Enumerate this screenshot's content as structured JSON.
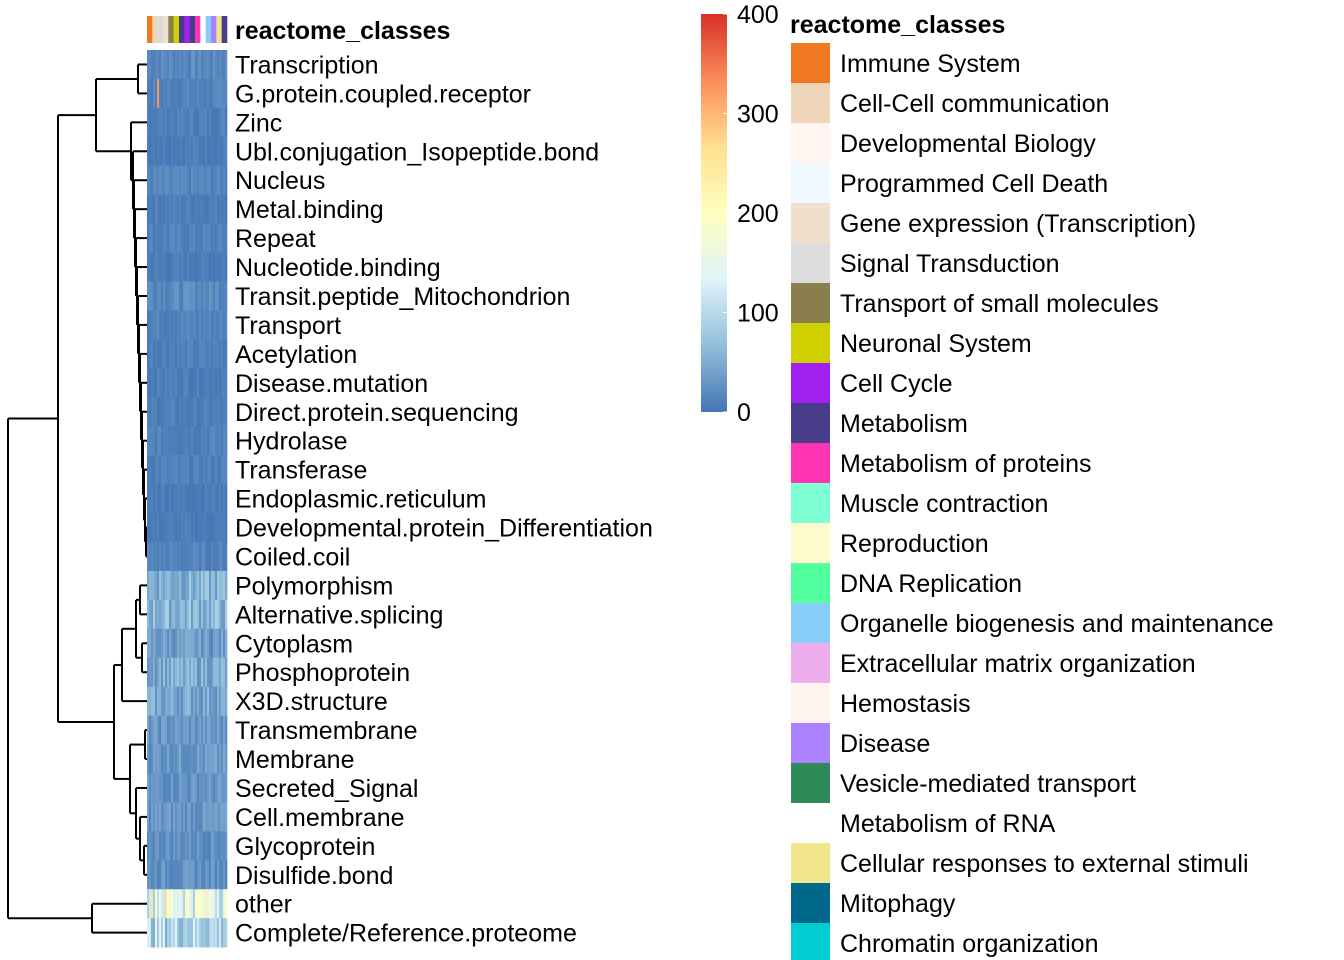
{
  "chart_data": {
    "type": "heatmap",
    "annotation_title": "reactome_classes",
    "rows": [
      "Transcription",
      "G.protein.coupled.receptor",
      "Zinc",
      "Ubl.conjugation_Isopeptide.bond",
      "Nucleus",
      "Metal.binding",
      "Repeat",
      "Nucleotide.binding",
      "Transit.peptide_Mitochondrion",
      "Transport",
      "Acetylation",
      "Disease.mutation",
      "Direct.protein.sequencing",
      "Hydrolase",
      "Transferase",
      "Endoplasmic.reticulum",
      "Developmental.protein_Differentiation",
      "Coiled.coil",
      "Polymorphism",
      "Alternative.splicing",
      "Cytoplasm",
      "Phosphoprotein",
      "X3D.structure",
      "Transmembrane",
      "Membrane",
      "Secreted_Signal",
      "Cell.membrane",
      "Glycoprotein",
      "Disulfide.bond",
      "other",
      "Complete/Reference.proteome"
    ],
    "row_levels": [
      18,
      12,
      10,
      8,
      14,
      9,
      11,
      7,
      20,
      13,
      10,
      9,
      8,
      12,
      10,
      7,
      6,
      12,
      55,
      60,
      35,
      50,
      45,
      30,
      32,
      28,
      30,
      26,
      25,
      160,
      95
    ],
    "color_scale": {
      "min": 0,
      "max": 400,
      "ticks": [
        "0",
        "100",
        "200",
        "300",
        "400"
      ],
      "colors": [
        "#4575b4",
        "#91bfdb",
        "#e0f3f8",
        "#ffffbf",
        "#fee090",
        "#fc8d59",
        "#d73027"
      ]
    },
    "annotation_legend": {
      "title": "reactome_classes",
      "items": [
        {
          "label": "Immune System",
          "color": "#f07820"
        },
        {
          "label": "Cell-Cell communication",
          "color": "#efd5b7"
        },
        {
          "label": "Developmental Biology",
          "color": "#fff6f1"
        },
        {
          "label": "Programmed Cell Death",
          "color": "#f0f8ff"
        },
        {
          "label": "Gene expression (Transcription)",
          "color": "#efdfcc"
        },
        {
          "label": "Signal Transduction",
          "color": "#dcdcdc"
        },
        {
          "label": "Transport of small molecules",
          "color": "#8a7f4c"
        },
        {
          "label": "Neuronal System",
          "color": "#d0d000"
        },
        {
          "label": "Cell Cycle",
          "color": "#a020f0"
        },
        {
          "label": "Metabolism",
          "color": "#483d8b"
        },
        {
          "label": "Metabolism of proteins",
          "color": "#ff34b3"
        },
        {
          "label": "Muscle contraction",
          "color": "#7fffd4"
        },
        {
          "label": "Reproduction",
          "color": "#fffacd"
        },
        {
          "label": "DNA Replication",
          "color": "#54ff9f"
        },
        {
          "label": "Organelle biogenesis and maintenance",
          "color": "#87cefa"
        },
        {
          "label": "Extracellular matrix organization",
          "color": "#eeaeee"
        },
        {
          "label": "Hemostasis",
          "color": "#fff5ee"
        },
        {
          "label": "Disease",
          "color": "#ab82ff"
        },
        {
          "label": "Vesicle-mediated transport",
          "color": "#2e8b57"
        },
        {
          "label": "Metabolism of RNA",
          "color": "#ffffff"
        },
        {
          "label": "Cellular responses to external stimuli",
          "color": "#f0e68c"
        },
        {
          "label": "Mitophagy",
          "color": "#00688b"
        },
        {
          "label": "Chromatin organization",
          "color": "#00ced1"
        }
      ]
    },
    "annotation_strip": [
      "#f07820",
      "#efd5b7",
      "#dcdcdc",
      "#efdfcc",
      "#8a7f4c",
      "#d0d000",
      "#483d8b",
      "#a020f0",
      "#483d8b",
      "#ff34b3",
      "#ffffff",
      "#87cefa",
      "#ab82ff",
      "#f0e68c",
      "#483d8b"
    ]
  }
}
